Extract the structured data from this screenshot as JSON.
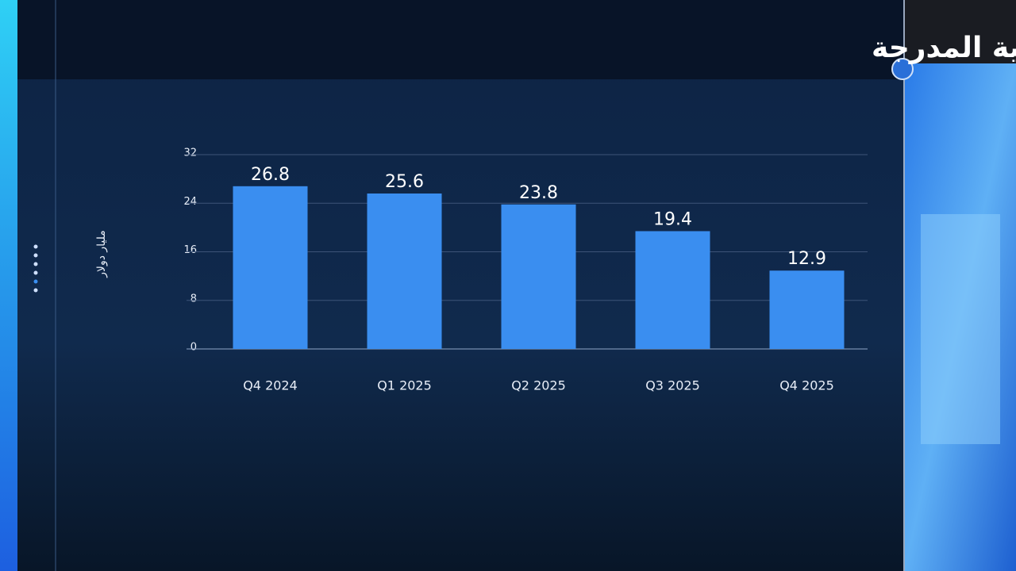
{
  "chart_data": {
    "type": "bar",
    "title": "ملكية PIF في الشركات الأميركية المدرجة",
    "y_label": "مليار دولار",
    "categories": [
      "Q4 2024",
      "Q1 2025",
      "Q2 2025",
      "Q3 2025",
      "Q4 2025"
    ],
    "values": [
      26.8,
      25.6,
      23.8,
      19.4,
      12.9
    ],
    "color": "#3a8ef0",
    "ylim": [
      0,
      32
    ],
    "yticks": [
      0,
      8,
      16,
      24,
      32
    ],
    "grid": true
  }
}
